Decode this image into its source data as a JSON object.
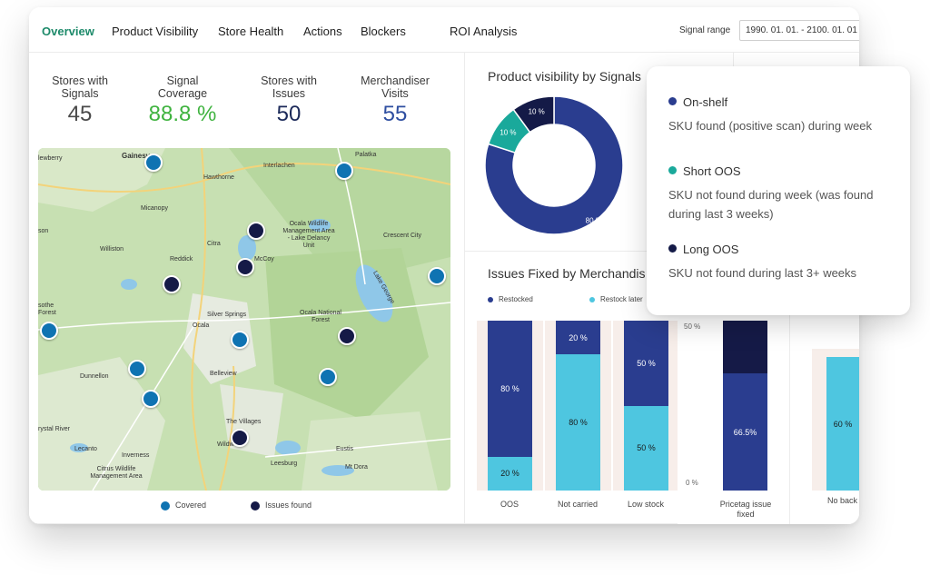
{
  "nav": {
    "tabs": [
      "Overview",
      "Product Visibility",
      "Store Health",
      "Actions",
      "Blockers",
      "ROI Analysis"
    ],
    "signal_range_label": "Signal range",
    "signal_range_value": "1990. 01. 01. - 2100. 01. 01"
  },
  "kpis": [
    {
      "label": "Stores with Signals",
      "value": "45",
      "color": "#4a4a4a"
    },
    {
      "label": "Signal Coverage",
      "value": "88.8 %",
      "color": "#3fb33f"
    },
    {
      "label": "Stores with Issues",
      "value": "50",
      "color": "#1c2a5a"
    },
    {
      "label": "Merchandiser Visits",
      "value": "55",
      "color": "#2e4ea0"
    }
  ],
  "map": {
    "places": [
      "Gainesv",
      "Palatka",
      "lewberry",
      "Hawthorne",
      "Interlachen",
      "Micanopy",
      "Ocala Wildlife Management Area - Lake Delancy Unit",
      "Crescent City",
      "Citra",
      "Reddick",
      "McCoy",
      "Williston",
      "Lake George",
      "Silver Springs",
      "Ocala",
      "Ocala National Forest",
      "Dunnellon",
      "Belleview",
      "The Villages",
      "Wildw",
      "Lecanto",
      "Inverness",
      "Leesburg",
      "Eustis",
      "Mt Dora",
      "Citrus Wildlife Management Area",
      "rystal River",
      "sothe Forest",
      "son"
    ],
    "legend": {
      "covered": "Covered",
      "issues": "Issues found"
    }
  },
  "donut": {
    "title": "Product visibility by Signals",
    "slices": [
      {
        "name": "On-shelf",
        "value": 80,
        "label": "80 %",
        "color": "#2a3d8f"
      },
      {
        "name": "Short OOS",
        "value": 10,
        "label": "10 %",
        "color": "#1aa99b"
      },
      {
        "name": "Long OOS",
        "value": 10,
        "label": "10 %",
        "color": "#141a47"
      }
    ]
  },
  "issues_chart": {
    "title": "Issues Fixed by Merchandis",
    "legend": {
      "restocked": "Restocked",
      "restock_later": "Restock later"
    },
    "bars": [
      {
        "category": "OOS",
        "restocked": 80,
        "restock_later": 20,
        "top_label": "80 %",
        "bottom_label": "20 %"
      },
      {
        "category": "Not carried",
        "restocked": 20,
        "restock_later": 80,
        "top_label": "20 %",
        "bottom_label": "80 %"
      },
      {
        "category": "Low stock",
        "restocked": 50,
        "restock_later": 50,
        "top_label": "50 %",
        "bottom_label": "50 %"
      }
    ]
  },
  "pricetag_chart": {
    "tick_top": "50 %",
    "tick_bottom": "0 %",
    "category": "Pricetag issue fixed",
    "label": "66.5%"
  },
  "right_chart": {
    "label": "60 %",
    "category": "No back"
  },
  "tooltip": {
    "items": [
      {
        "title": "On-shelf",
        "desc": "SKU found (positive scan) during week",
        "color": "#2a3d8f"
      },
      {
        "title": "Short OOS",
        "desc": "SKU not found during week (was found during last 3 weeks)",
        "color": "#1aa99b"
      },
      {
        "title": "Long OOS",
        "desc": "SKU not found during last 3+ weeks",
        "color": "#141a47"
      }
    ]
  }
}
